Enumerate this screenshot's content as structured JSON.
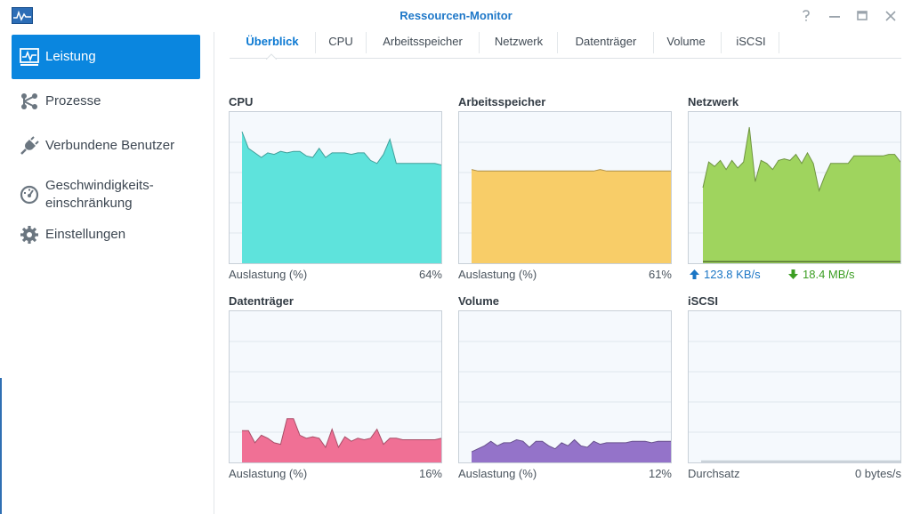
{
  "window": {
    "title": "Ressourcen-Monitor",
    "icon": "resource-monitor-app-icon",
    "controls": [
      "help-icon",
      "minimize-icon",
      "maximize-icon",
      "close-icon"
    ]
  },
  "sidebar": {
    "items": [
      {
        "label": "Leistung",
        "icon": "performance-icon",
        "active": true
      },
      {
        "label": "Prozesse",
        "icon": "process-icon"
      },
      {
        "label": "Verbundene Benutzer",
        "icon": "plug-icon"
      },
      {
        "label_line1": "Geschwindigkeits-",
        "label_line2": "einschränkung",
        "icon": "speedometer-icon"
      },
      {
        "label": "Einstellungen",
        "icon": "gear-icon"
      }
    ]
  },
  "tabs": [
    "Überblick",
    "CPU",
    "Arbeitsspeicher",
    "Netzwerk",
    "Datenträger",
    "Volume",
    "iSCSI"
  ],
  "colors": {
    "accent": "#0a86df",
    "cpu": "#5ee3dc",
    "memory": "#f8cd68",
    "network": "#9fd45e",
    "disk": "#f07095",
    "volume": "#9473c9",
    "upload": "#1b76c5",
    "download": "#3c9e23"
  },
  "panels": {
    "cpu": {
      "title": "CPU",
      "label": "Auslastung (%)",
      "value": "64%"
    },
    "memory": {
      "title": "Arbeitsspeicher",
      "label": "Auslastung (%)",
      "value": "61%"
    },
    "network": {
      "title": "Netzwerk",
      "upload": "123.8 KB/s",
      "download": "18.4 MB/s"
    },
    "disk": {
      "title": "Datenträger",
      "label": "Auslastung (%)",
      "value": "16%"
    },
    "volume": {
      "title": "Volume",
      "label": "Auslastung (%)",
      "value": "12%"
    },
    "iscsi": {
      "title": "iSCSI",
      "label": "Durchsatz",
      "value": "0 bytes/s"
    }
  },
  "chart_data": [
    {
      "type": "area",
      "title": "CPU",
      "ylim": [
        0,
        100
      ],
      "values": [
        87,
        76,
        73,
        70,
        73,
        72,
        74,
        73,
        74,
        74,
        71,
        70,
        76,
        70,
        73,
        73,
        73,
        72,
        73,
        73,
        68,
        66,
        72,
        82,
        66,
        66,
        66,
        66,
        66,
        66,
        66,
        65
      ]
    },
    {
      "type": "area",
      "title": "Arbeitsspeicher",
      "ylim": [
        0,
        100
      ],
      "values": [
        62,
        61,
        61,
        61,
        61,
        61,
        61,
        61,
        61,
        61,
        61,
        61,
        61,
        61,
        61,
        61,
        61,
        61,
        61,
        61,
        62,
        61,
        61,
        61,
        61,
        61,
        61,
        61,
        61,
        61,
        61,
        61
      ]
    },
    {
      "type": "area",
      "title": "Netzwerk",
      "ylim": [
        0,
        100
      ],
      "series": [
        {
          "values": [
            50,
            67,
            64,
            68,
            62,
            68,
            63,
            67,
            90,
            54,
            68,
            66,
            62,
            68,
            69,
            68,
            72,
            66,
            73,
            66,
            48,
            58,
            66,
            66,
            66,
            66,
            71,
            71,
            71,
            71,
            71,
            71,
            72,
            72,
            67
          ]
        },
        {
          "values": [
            1,
            1,
            1,
            1,
            1,
            1,
            1,
            1,
            1,
            1,
            1,
            1,
            1,
            1,
            1,
            1,
            1,
            1,
            1,
            1,
            1,
            1,
            1,
            1,
            1,
            1,
            1,
            1,
            1,
            1,
            1,
            1,
            1,
            1,
            1
          ]
        }
      ]
    },
    {
      "type": "area",
      "title": "Datenträger",
      "ylim": [
        0,
        100
      ],
      "values": [
        21,
        21,
        13,
        18,
        16,
        13,
        12,
        29,
        29,
        18,
        16,
        17,
        16,
        10,
        22,
        10,
        17,
        14,
        16,
        15,
        16,
        22,
        12,
        16,
        16,
        15,
        15,
        15,
        15,
        15,
        15,
        16
      ]
    },
    {
      "type": "area",
      "title": "Volume",
      "ylim": [
        0,
        100
      ],
      "values": [
        7,
        9,
        11,
        14,
        11,
        13,
        13,
        15,
        14,
        10,
        14,
        14,
        11,
        9,
        13,
        11,
        15,
        11,
        10,
        14,
        12,
        13,
        13,
        13,
        13,
        14,
        14,
        14,
        13,
        14,
        14,
        14
      ]
    },
    {
      "type": "area",
      "title": "iSCSI",
      "ylim": [
        0,
        100
      ],
      "values": [
        1,
        1,
        1,
        1,
        1,
        1,
        1,
        1,
        1,
        1,
        1,
        1,
        1,
        1,
        1,
        1,
        1,
        1,
        1,
        1,
        1,
        1,
        1,
        1,
        1,
        1,
        1,
        1,
        1,
        1,
        1,
        1
      ]
    }
  ]
}
